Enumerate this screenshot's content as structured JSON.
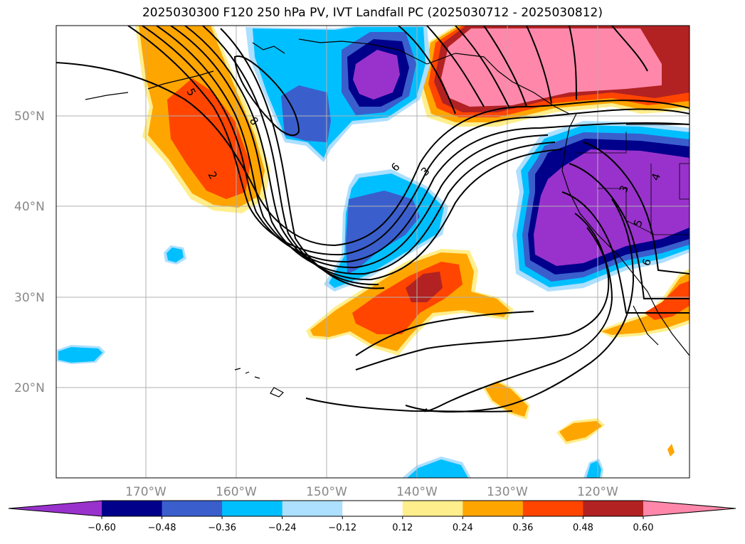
{
  "title": "2025030300 F120 250 hPa PV, IVT Landfall PC (2025030712 - 2025030812)",
  "lat_labels": [
    "50°N",
    "40°N",
    "30°N",
    "20°N"
  ],
  "lon_labels": [
    "170°W",
    "160°W",
    "150°W",
    "140°W",
    "130°W",
    "120°W"
  ],
  "colorbar": {
    "colors": [
      "#9932CC",
      "#00008B",
      "#3A5FCD",
      "#00BFFF",
      "#ADDFFF",
      "#FFFFFF",
      "#FFEE8C",
      "#FFA500",
      "#FF4500",
      "#B22222",
      "#FF88AA"
    ],
    "tick_labels": [
      "−0.60",
      "−0.48",
      "−0.36",
      "−0.24",
      "−0.12",
      "0.12",
      "0.24",
      "0.36",
      "0.48",
      "0.60"
    ]
  },
  "contour_labels": [
    "5",
    "2",
    "8",
    "6",
    "3",
    "3",
    "4",
    "5",
    "6"
  ]
}
